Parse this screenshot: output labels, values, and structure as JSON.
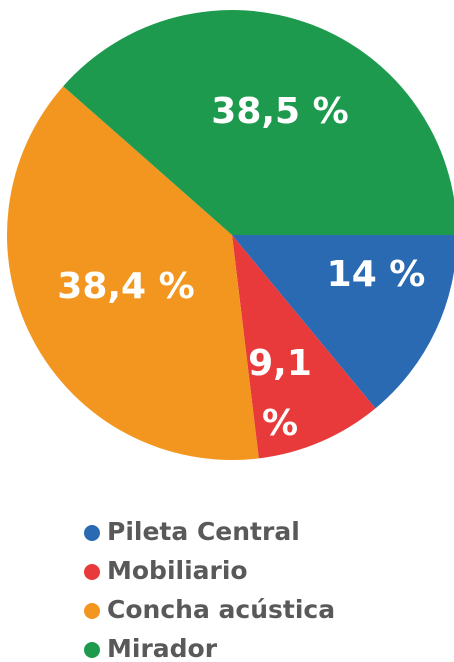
{
  "chart_data": {
    "type": "pie",
    "categories": [
      "Pileta Central",
      "Mobiliario",
      "Concha acústica",
      "Mirador"
    ],
    "values": [
      14,
      9.1,
      38.4,
      38.5
    ],
    "value_labels": [
      "14 %",
      "9,1 %",
      "38,4 %",
      "38,5 %"
    ],
    "colors": [
      "#2a6ab3",
      "#e83a3a",
      "#f3961f",
      "#1e9a4e"
    ]
  }
}
